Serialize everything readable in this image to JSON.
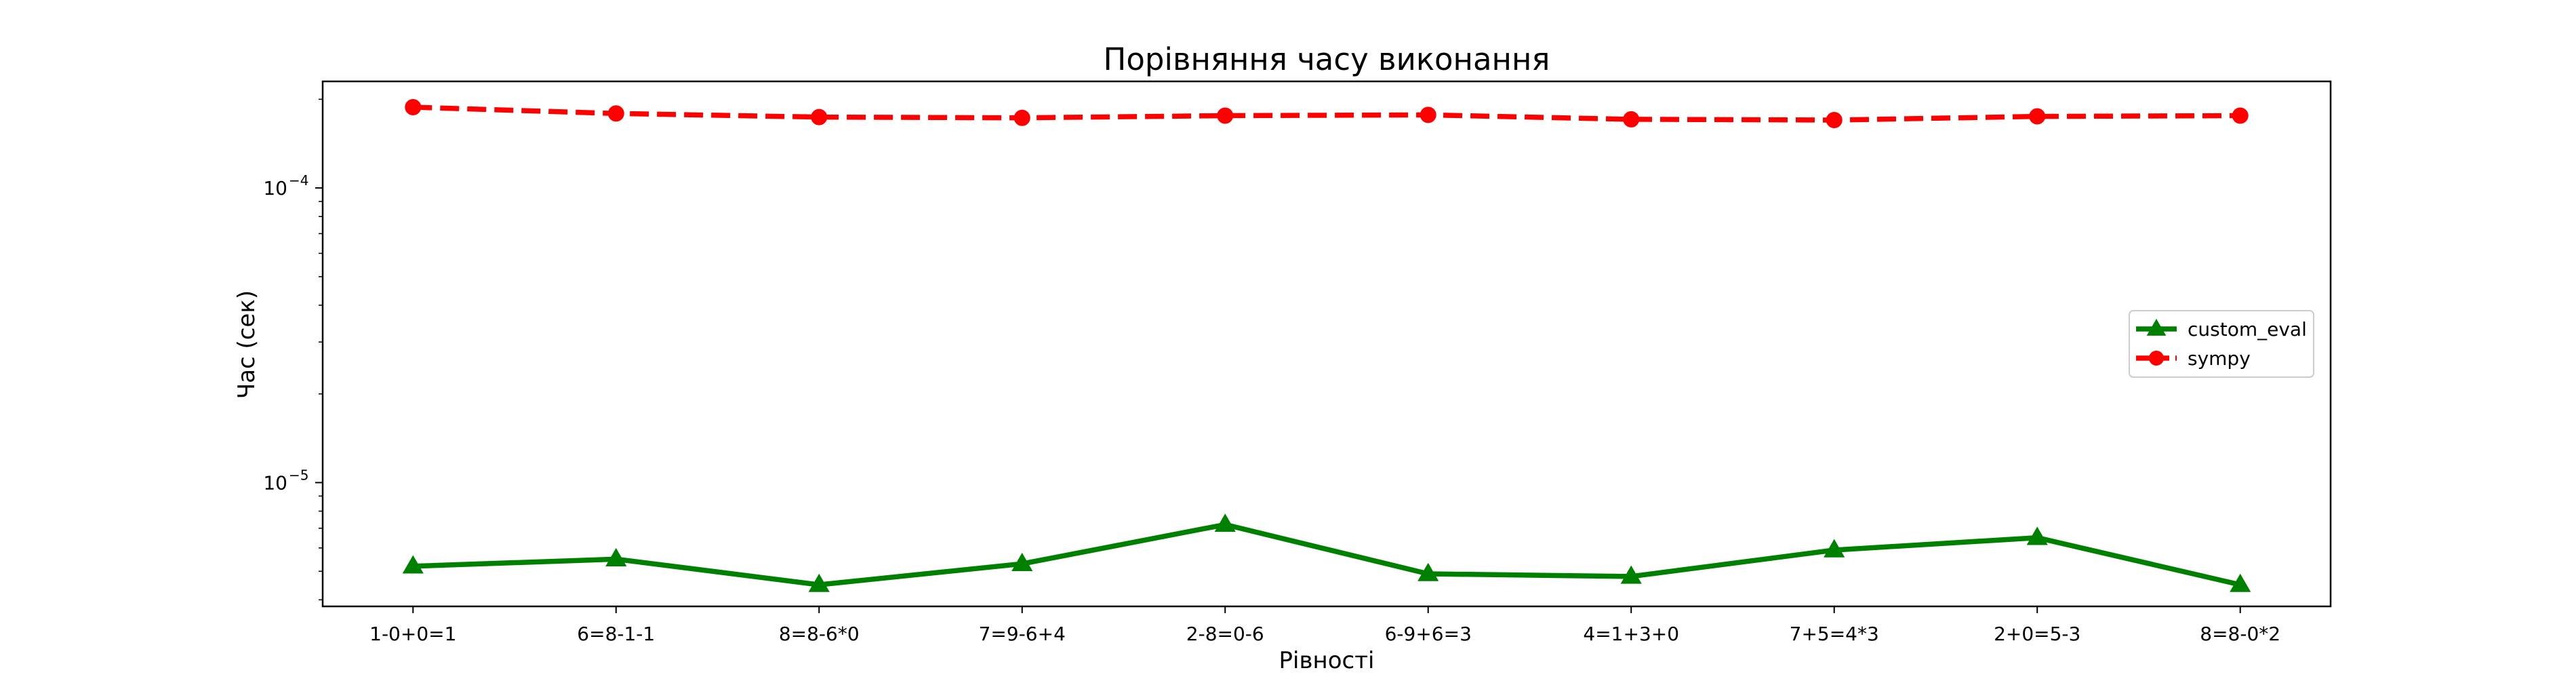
{
  "chart_data": {
    "type": "line",
    "title": "Порівняння часу виконання",
    "xlabel": "Рівності",
    "ylabel": "Час (сек)",
    "yscale": "log",
    "ylim": [
      3.8e-06,
      0.00023
    ],
    "yticks": [
      {
        "value": 1e-05,
        "base": "10",
        "exp": "−5"
      },
      {
        "value": 0.0001,
        "base": "10",
        "exp": "−4"
      }
    ],
    "grid": false,
    "legend_position": "center-right",
    "categories": [
      "1-0+0=1",
      "6=8-1-1",
      "8=8-6*0",
      "7=9-6+4",
      "2-8=0-6",
      "6-9+6=3",
      "4=1+3+0",
      "7+5=4*3",
      "2+0=5-3",
      "8=8-0*2"
    ],
    "series": [
      {
        "name": "custom_eval",
        "color": "#008000",
        "line_style": "solid",
        "marker": "triangle",
        "values": [
          5.2e-06,
          5.5e-06,
          4.5e-06,
          5.3e-06,
          7.2e-06,
          4.9e-06,
          4.8e-06,
          5.9e-06,
          6.5e-06,
          4.5e-06
        ]
      },
      {
        "name": "sympy",
        "color": "#ff0000",
        "line_style": "dashed",
        "marker": "circle",
        "values": [
          0.000188,
          0.000179,
          0.000174,
          0.000173,
          0.000176,
          0.000177,
          0.000171,
          0.00017,
          0.000175,
          0.000176
        ]
      }
    ]
  }
}
